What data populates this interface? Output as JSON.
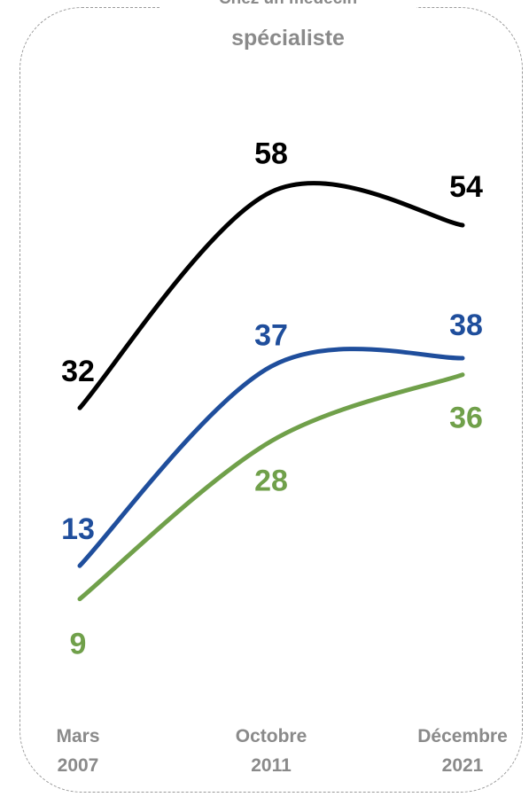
{
  "chart_data": {
    "type": "line",
    "title_line1": "Chez un médecin",
    "title_line2": "spécialiste",
    "categories": [
      {
        "line1": "Mars",
        "line2": "2007"
      },
      {
        "line1": "Octobre",
        "line2": "2011"
      },
      {
        "line1": "Décembre",
        "line2": "2021"
      }
    ],
    "series": [
      {
        "color": "#000000",
        "values": [
          32,
          58,
          54
        ]
      },
      {
        "color": "#1f4e9c",
        "values": [
          13,
          37,
          38
        ]
      },
      {
        "color": "#70a04a",
        "values": [
          9,
          28,
          36
        ]
      }
    ],
    "grid": false,
    "legend": "none"
  }
}
